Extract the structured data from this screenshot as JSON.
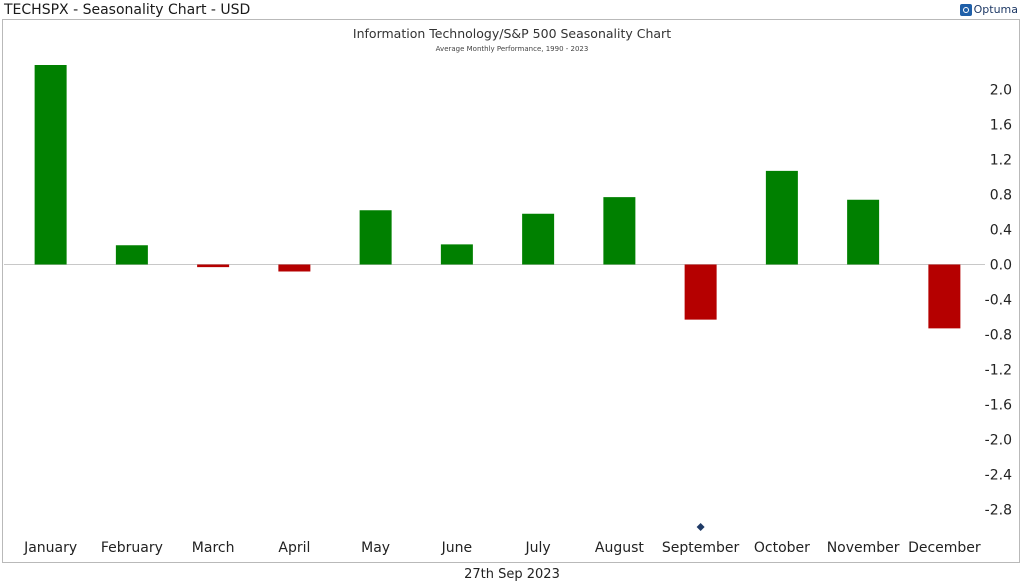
{
  "window": {
    "title": "TECHSPX - Seasonality Chart - USD",
    "brand": "Optuma"
  },
  "footer": {
    "date": "27th Sep 2023"
  },
  "colors": {
    "positive": "#008000",
    "negative": "#b50000",
    "marker": "#1f3a66",
    "zero_line": "#c8c8c8"
  },
  "chart_data": {
    "type": "bar",
    "title": "Information Technology/S&P 500 Seasonality Chart",
    "subtitle": "Average Monthly Performance, 1990 - 2023",
    "categories": [
      "January",
      "February",
      "March",
      "April",
      "May",
      "June",
      "July",
      "August",
      "September",
      "October",
      "November",
      "December"
    ],
    "values": [
      2.28,
      0.22,
      -0.03,
      -0.08,
      0.62,
      0.23,
      0.58,
      0.77,
      -0.63,
      1.07,
      0.74,
      -0.73
    ],
    "yticks": [
      2.0,
      1.6,
      1.2,
      0.8,
      0.4,
      0.0,
      -0.4,
      -0.8,
      -1.2,
      -1.6,
      -2.0,
      -2.4,
      -2.8
    ],
    "ytick_labels": [
      "2.0",
      "1.6",
      "1.2",
      "0.8",
      "0.4",
      "0.0",
      "-0.4",
      "-0.8",
      "-1.2",
      "-1.6",
      "-2.0",
      "-2.4",
      "-2.8"
    ],
    "ylim": [
      -2.95,
      2.55
    ],
    "y_axis_position": "right",
    "grid": false,
    "current_month_marker": "September",
    "xlabel": "",
    "ylabel": ""
  }
}
